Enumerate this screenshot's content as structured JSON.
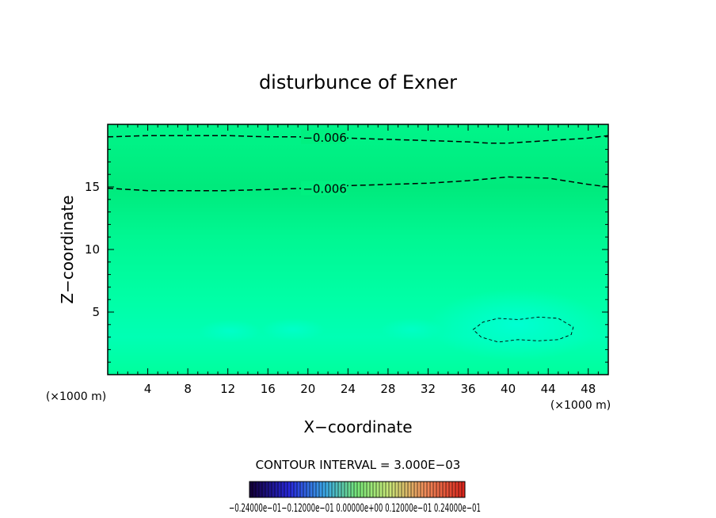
{
  "chart_data": {
    "type": "heatmap",
    "title": "disturbunce of Exner",
    "xlabel": "X−coordinate",
    "ylabel": "Z−coordinate",
    "x_unit_left": "(×1000 m)",
    "x_unit_right": "(×1000 m)",
    "xlim": [
      0,
      50
    ],
    "ylim": [
      0,
      20
    ],
    "x_ticks": [
      4,
      8,
      12,
      16,
      20,
      24,
      28,
      32,
      36,
      40,
      44,
      48
    ],
    "y_ticks": [
      5,
      10,
      15
    ],
    "contours": [
      {
        "label": "−0.006",
        "style": "dashed",
        "x": [
          0,
          4,
          8,
          12,
          16,
          20,
          24,
          28,
          32,
          36,
          38,
          40,
          44,
          48,
          50
        ],
        "y": [
          19.0,
          19.1,
          19.1,
          19.1,
          19.0,
          19.0,
          18.9,
          18.8,
          18.7,
          18.6,
          18.5,
          18.5,
          18.7,
          18.9,
          19.1
        ]
      },
      {
        "label": "−0.006",
        "style": "dashed",
        "x": [
          0,
          4,
          8,
          12,
          16,
          20,
          24,
          28,
          32,
          36,
          40,
          44,
          48,
          50
        ],
        "y": [
          14.9,
          14.7,
          14.7,
          14.7,
          14.8,
          14.9,
          15.1,
          15.2,
          15.3,
          15.5,
          15.8,
          15.7,
          15.2,
          15.0
        ]
      },
      {
        "label": "",
        "style": "dashed-closed",
        "x": [
          36.5,
          37.5,
          39,
          41,
          43,
          45,
          46.5,
          46.3,
          45,
          43,
          41,
          39,
          37.3,
          36.5
        ],
        "y": [
          3.6,
          4.2,
          4.5,
          4.4,
          4.6,
          4.5,
          3.8,
          3.2,
          2.8,
          2.7,
          2.8,
          2.6,
          3.0,
          3.6
        ]
      }
    ],
    "field_colors": [
      "#00e87a",
      "#00ff9e",
      "#00ffc8"
    ],
    "contour_interval": "CONTOUR INTERVAL = 3.000E−03",
    "colorbar_labels": "−0.24000e−01−0.12000e−01 0.00000e+00 0.12000e−01 0.24000e−01"
  }
}
